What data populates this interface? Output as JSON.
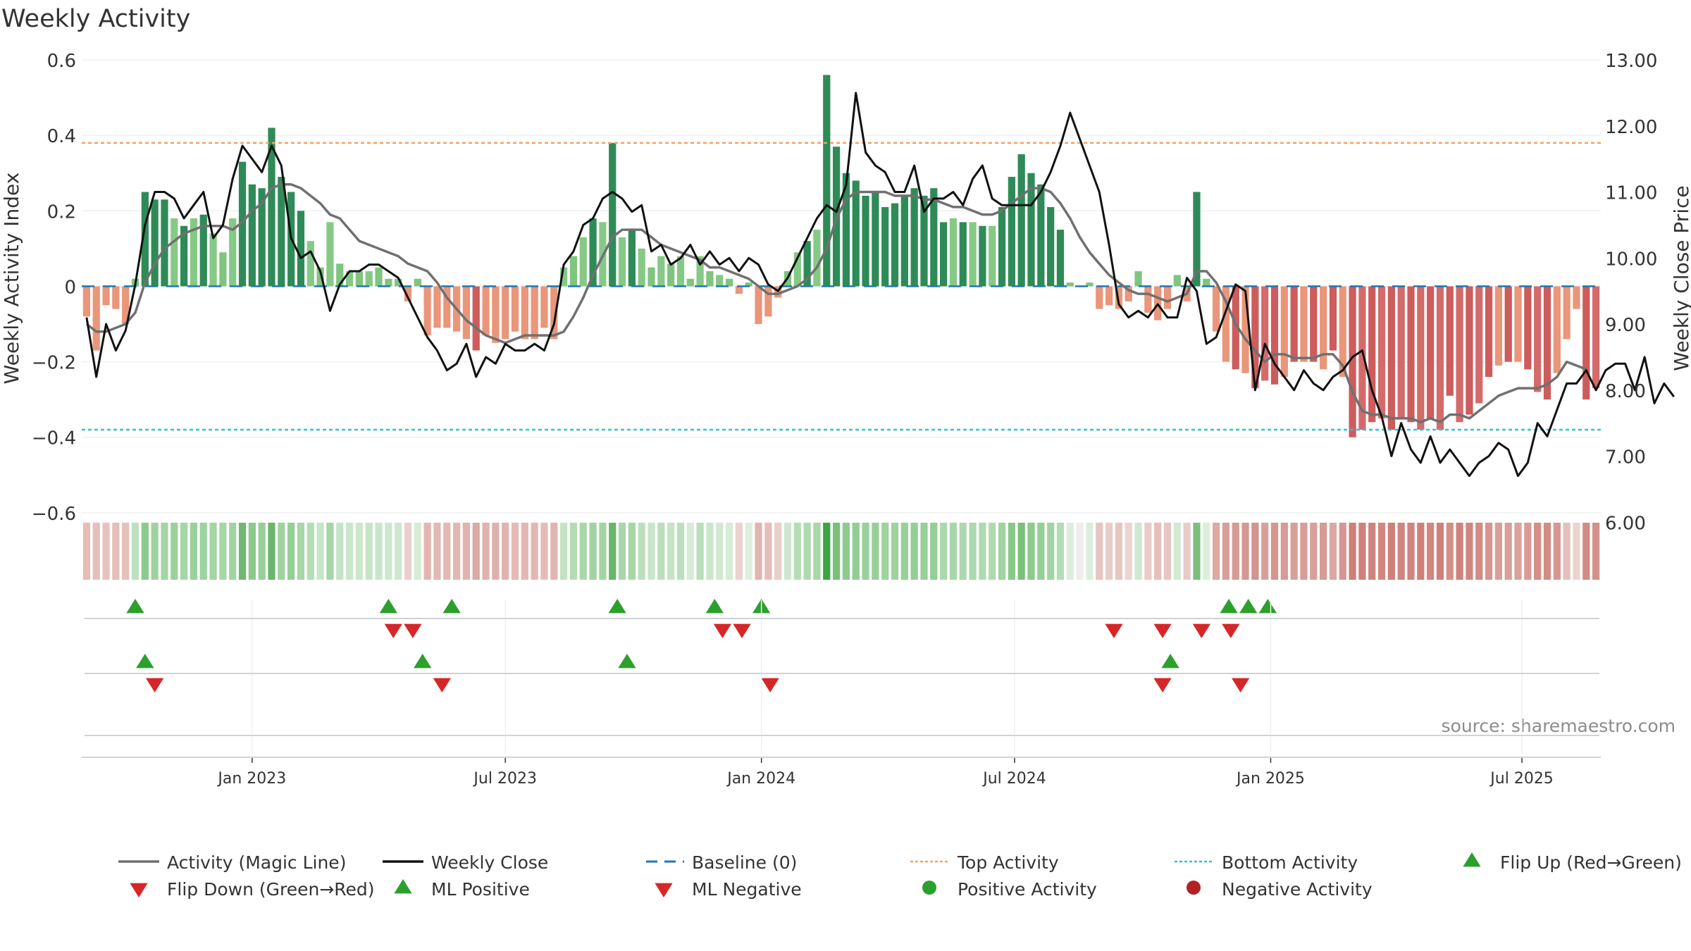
{
  "chart_data": {
    "type": "bar",
    "title": "Weekly Activity",
    "ylabel": "Weekly Activity Index",
    "y2label": "Weekly Close Price",
    "ylim": [
      -0.66,
      0.6
    ],
    "y2lim": [
      5.8,
      13.0
    ],
    "yticks": [
      0.6,
      0.4,
      0.2,
      0,
      -0.2,
      -0.4,
      -0.6
    ],
    "ytick_labels": [
      "0.6",
      "0.4",
      "0.2",
      "0",
      "−0.2",
      "−0.4",
      "−0.6"
    ],
    "y2ticks": [
      13,
      12,
      11,
      10,
      9,
      8,
      7,
      6
    ],
    "y2tick_labels": [
      "13.00",
      "12.00",
      "11.00",
      "10.00",
      "9.00",
      "8.00",
      "7.00",
      "6.00"
    ],
    "x_start_week": -17,
    "xticks": [
      {
        "label": "Jan 2023",
        "week": 0
      },
      {
        "label": "Jul 2023",
        "week": 26
      },
      {
        "label": "Jan 2024",
        "week": 52.3
      },
      {
        "label": "Jul 2024",
        "week": 78.3
      },
      {
        "label": "Jan 2025",
        "week": 104.6
      },
      {
        "label": "Jul 2025",
        "week": 130.4
      }
    ],
    "top_activity": 0.38,
    "bottom_activity": -0.38,
    "activity": [
      -0.08,
      -0.17,
      -0.05,
      -0.06,
      -0.1,
      0.02,
      0.25,
      0.23,
      0.23,
      0.18,
      0.16,
      0.18,
      0.19,
      0.14,
      0.09,
      0.18,
      0.33,
      0.27,
      0.26,
      0.42,
      0.29,
      0.25,
      0.2,
      0.12,
      0.05,
      0.17,
      0.06,
      0.04,
      0.04,
      0.04,
      0.05,
      0.02,
      0.02,
      -0.04,
      0.02,
      -0.13,
      -0.11,
      -0.11,
      -0.12,
      -0.14,
      -0.17,
      -0.13,
      -0.15,
      -0.14,
      -0.12,
      -0.14,
      -0.14,
      -0.11,
      -0.14,
      0.05,
      0.08,
      0.13,
      0.18,
      0.17,
      0.38,
      0.13,
      0.15,
      0.1,
      0.05,
      0.08,
      0.06,
      0.08,
      0.02,
      0.08,
      0.04,
      0.03,
      0.02,
      -0.02,
      0.01,
      -0.1,
      -0.08,
      -0.03,
      0.04,
      0.09,
      0.12,
      0.15,
      0.56,
      0.37,
      0.3,
      0.28,
      0.24,
      0.25,
      0.21,
      0.22,
      0.24,
      0.26,
      0.24,
      0.26,
      0.17,
      0.18,
      0.17,
      0.17,
      0.16,
      0.16,
      0.21,
      0.29,
      0.35,
      0.3,
      0.27,
      0.21,
      0.15,
      0.01,
      0,
      0.01,
      -0.06,
      -0.05,
      -0.06,
      -0.04,
      0.04,
      -0.07,
      -0.09,
      -0.06,
      0.03,
      -0.04,
      0.25,
      0.02,
      -0.12,
      -0.2,
      -0.22,
      -0.23,
      -0.27,
      -0.25,
      -0.26,
      -0.24,
      -0.2,
      -0.2,
      -0.2,
      -0.22,
      -0.17,
      -0.24,
      -0.4,
      -0.38,
      -0.36,
      -0.35,
      -0.38,
      -0.35,
      -0.36,
      -0.38,
      -0.35,
      -0.38,
      -0.29,
      -0.36,
      -0.34,
      -0.31,
      -0.24,
      -0.21,
      -0.2,
      -0.2,
      -0.22,
      -0.28,
      -0.3,
      -0.23,
      -0.14,
      -0.06,
      -0.3,
      -0.27
    ],
    "magic_line": [
      -0.1,
      -0.12,
      -0.12,
      -0.11,
      -0.1,
      -0.07,
      0.01,
      0.06,
      0.1,
      0.12,
      0.14,
      0.15,
      0.16,
      0.16,
      0.16,
      0.15,
      0.17,
      0.2,
      0.22,
      0.26,
      0.27,
      0.27,
      0.26,
      0.24,
      0.22,
      0.19,
      0.18,
      0.15,
      0.12,
      0.11,
      0.1,
      0.09,
      0.08,
      0.06,
      0.05,
      0.04,
      0.01,
      -0.03,
      -0.06,
      -0.09,
      -0.11,
      -0.13,
      -0.14,
      -0.15,
      -0.14,
      -0.13,
      -0.13,
      -0.13,
      -0.13,
      -0.12,
      -0.08,
      -0.03,
      0.03,
      0.08,
      0.13,
      0.15,
      0.15,
      0.15,
      0.13,
      0.11,
      0.1,
      0.09,
      0.08,
      0.07,
      0.05,
      0.05,
      0.04,
      0.03,
      0.02,
      0,
      -0.02,
      -0.02,
      -0.01,
      0,
      0.02,
      0.05,
      0.1,
      0.18,
      0.23,
      0.25,
      0.25,
      0.25,
      0.25,
      0.24,
      0.24,
      0.24,
      0.23,
      0.23,
      0.22,
      0.21,
      0.21,
      0.2,
      0.19,
      0.19,
      0.2,
      0.22,
      0.24,
      0.26,
      0.26,
      0.25,
      0.22,
      0.18,
      0.13,
      0.09,
      0.06,
      0.03,
      0.01,
      -0.01,
      -0.02,
      -0.02,
      -0.03,
      -0.04,
      -0.03,
      -0.02,
      0.04,
      0.04,
      0.01,
      -0.04,
      -0.1,
      -0.14,
      -0.17,
      -0.2,
      -0.18,
      -0.18,
      -0.19,
      -0.19,
      -0.19,
      -0.18,
      -0.18,
      -0.21,
      -0.28,
      -0.33,
      -0.34,
      -0.34,
      -0.35,
      -0.35,
      -0.35,
      -0.36,
      -0.35,
      -0.36,
      -0.34,
      -0.34,
      -0.35,
      -0.33,
      -0.31,
      -0.29,
      -0.28,
      -0.27,
      -0.27,
      -0.27,
      -0.26,
      -0.24,
      -0.2,
      -0.21,
      -0.22
    ],
    "weekly_close": [
      9.1,
      8.2,
      9.0,
      8.6,
      8.9,
      9.6,
      10.5,
      11.0,
      11.0,
      10.9,
      10.6,
      10.8,
      11.0,
      10.3,
      10.5,
      11.2,
      11.7,
      11.5,
      11.3,
      11.7,
      11.4,
      10.3,
      10.0,
      10.1,
      9.8,
      9.2,
      9.6,
      9.8,
      9.8,
      9.9,
      9.9,
      9.8,
      9.7,
      9.4,
      9.1,
      8.8,
      8.6,
      8.3,
      8.4,
      8.7,
      8.2,
      8.5,
      8.4,
      8.7,
      8.6,
      8.6,
      8.7,
      8.6,
      9.0,
      9.9,
      10.1,
      10.5,
      10.6,
      10.9,
      11.0,
      10.9,
      10.7,
      10.8,
      10.1,
      10.2,
      9.9,
      10.0,
      10.2,
      9.9,
      10.1,
      9.9,
      10.0,
      9.8,
      10.0,
      9.9,
      9.6,
      9.5,
      9.7,
      10.0,
      10.3,
      10.6,
      10.8,
      10.7,
      11.1,
      12.5,
      11.6,
      11.4,
      11.3,
      11.0,
      11.0,
      11.4,
      10.7,
      10.9,
      10.9,
      11.0,
      10.8,
      11.2,
      11.4,
      10.9,
      10.8,
      10.8,
      10.8,
      10.8,
      11.0,
      11.3,
      11.7,
      12.2,
      11.8,
      11.4,
      11.0,
      10.2,
      9.3,
      9.1,
      9.2,
      9.1,
      9.3,
      9.1,
      9.1,
      9.7,
      9.5,
      8.7,
      8.8,
      9.2,
      9.6,
      9.5,
      8.0,
      8.7,
      8.4,
      8.2,
      8.0,
      8.3,
      8.1,
      8.0,
      8.2,
      8.3,
      8.5,
      8.6,
      8.0,
      7.6,
      7.0,
      7.5,
      7.1,
      6.9,
      7.3,
      6.9,
      7.1,
      6.9,
      6.7,
      6.9,
      7.0,
      7.2,
      7.1,
      6.7,
      6.9,
      7.5,
      7.3,
      7.7,
      8.1,
      8.1,
      8.3,
      8.0,
      8.3,
      8.4,
      8.4,
      8.0,
      8.5,
      7.8,
      8.1,
      7.9
    ],
    "strip_colors": [
      "#e6bcb7",
      "#e3c0bc",
      "#e6c3bf",
      "#e5beba",
      "#e6c0bb",
      "#bfe0c0",
      "#8ccb8d",
      "#9fd29f",
      "#a4d5a4",
      "#9bd19b",
      "#a5d6a6",
      "#9ad09a",
      "#9dd39f",
      "#a4d5a4",
      "#a7d6a7",
      "#a2d4a3",
      "#71b773",
      "#8cca8c",
      "#97cf98",
      "#6cb56d",
      "#a0d2a0",
      "#94cf96",
      "#a7d6a8",
      "#b4dcb5",
      "#c7e5c8",
      "#a5d6a5",
      "#c5e4c6",
      "#cae7cb",
      "#cbe7cc",
      "#c6e5c7",
      "#c9e6ca",
      "#cce8cd",
      "#cde8ce",
      "#e9d0cd",
      "#d6ecd6",
      "#e3b5b1",
      "#e2b9b5",
      "#e3b9b4",
      "#e1b7b3",
      "#e1b3af",
      "#dbaaa5",
      "#e0b3ae",
      "#dfb1ab",
      "#e1b3af",
      "#e4bbb7",
      "#e3b7b3",
      "#e2b7b3",
      "#e4bcb7",
      "#e2b5b0",
      "#c4e3c4",
      "#b3dcb3",
      "#a9d7a9",
      "#a0d3a1",
      "#a2d4a2",
      "#6ab56b",
      "#a9d7aa",
      "#a6d6a6",
      "#bbdfbb",
      "#c8e6c8",
      "#bbdfbb",
      "#c5e4c6",
      "#bcdfbd",
      "#d6ecd6",
      "#bbdfbb",
      "#cae7cb",
      "#d1e9d1",
      "#d6ecd6",
      "#ebd2cf",
      "#dbefdc",
      "#e0b5b0",
      "#e5bdb9",
      "#e9cecb",
      "#cde8ce",
      "#b6ddb6",
      "#aedaaf",
      "#a8d7a8",
      "#3da342",
      "#7ac07b",
      "#8ecb8f",
      "#92cd93",
      "#9bd19c",
      "#98cf98",
      "#9fd3a0",
      "#9ed2a0",
      "#99d09a",
      "#94cf96",
      "#99d09a",
      "#95ce96",
      "#acd8ad",
      "#a9d6a9",
      "#acd8ad",
      "#acd8ae",
      "#afd9af",
      "#b0d9b0",
      "#a0d3a0",
      "#89ca8a",
      "#7cc07d",
      "#8ccb8c",
      "#94cf96",
      "#a2d4a3",
      "#b4dcb4",
      "#dbeedc",
      "#edeeec",
      "#dbeedc",
      "#e6c6c2",
      "#e8ccc8",
      "#e6c6c2",
      "#ebd3d0",
      "#cfe8cf",
      "#e9cbc8",
      "#e4c0bc",
      "#e6c6c3",
      "#d2e9d2",
      "#e8cbc8",
      "#7ac07b",
      "#dbeedc",
      "#dca9a3",
      "#d99e98",
      "#d89b95",
      "#d69892",
      "#d4938d",
      "#d8a09a",
      "#d6958f",
      "#d79a94",
      "#d99f99",
      "#d89d97",
      "#d99f9a",
      "#d79a94",
      "#dca7a1",
      "#d69690",
      "#cf7e78",
      "#cf817c",
      "#d0847f",
      "#d1877f",
      "#cf807b",
      "#d1857f",
      "#d0847e",
      "#cf807b",
      "#d18680",
      "#cf817a",
      "#d48f89",
      "#d0837e",
      "#d1877f",
      "#d38b84",
      "#d6958f",
      "#d99e98",
      "#d9a09a",
      "#dba29d",
      "#d99b95",
      "#d58e88",
      "#d38c85",
      "#d69790",
      "#e5bfb9",
      "#ebd3d0",
      "#d38c85",
      "#d59089"
    ],
    "flip_up_weeks": [
      -12,
      14,
      20.5,
      37.5,
      47.5,
      52.3,
      100.3,
      102.3,
      104.3
    ],
    "flip_down_weeks": [
      14.5,
      16.5,
      48.3,
      50.3,
      88.5,
      93.5,
      97.5,
      100.5
    ],
    "ml_positive_weeks": [
      -11,
      17.5,
      38.5,
      94.3
    ],
    "ml_negative_weeks": [
      -10,
      19.5,
      53.2,
      93.5,
      101.5
    ],
    "source_text": "source: sharemaestro.com",
    "legend": [
      {
        "label": "Activity (Magic Line)",
        "kind": "line",
        "color": "#707070"
      },
      {
        "label": "Weekly Close",
        "kind": "line",
        "color": "#111111"
      },
      {
        "label": "Baseline (0)",
        "kind": "dash",
        "color": "#1f77b4"
      },
      {
        "label": "Top Activity",
        "kind": "dot",
        "color": "#f4a261"
      },
      {
        "label": "Bottom Activity",
        "kind": "dot",
        "color": "#2ec4d6"
      },
      {
        "label": "Flip Up (Red→Green)",
        "kind": "tri-up",
        "color": "#2ca02c"
      },
      {
        "label": "Flip Down (Green→Red)",
        "kind": "tri-down",
        "color": "#d62728"
      },
      {
        "label": "ML Positive",
        "kind": "tri-up",
        "color": "#2ca02c"
      },
      {
        "label": "ML Negative",
        "kind": "tri-down",
        "color": "#d62728"
      },
      {
        "label": "Positive Activity",
        "kind": "circle",
        "color": "#2ca02c"
      },
      {
        "label": "Negative Activity",
        "kind": "circle",
        "color": "#b22222"
      }
    ]
  }
}
